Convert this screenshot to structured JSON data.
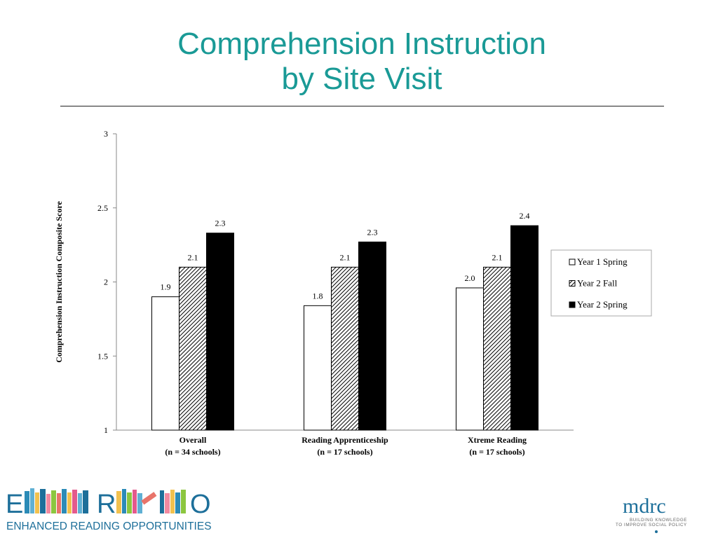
{
  "slide": {
    "title_line1": "Comprehension Instruction",
    "title_line2": "by Site Visit"
  },
  "colors": {
    "title": "#1a9a96",
    "logo_teal": "#1d6f9a"
  },
  "chart_data": {
    "type": "bar",
    "categories": [
      [
        "Overall",
        "(n = 34 schools)"
      ],
      [
        "Reading Apprenticeship",
        "(n = 17 schools)"
      ],
      [
        "Xtreme Reading",
        "(n = 17 schools)"
      ]
    ],
    "series": [
      {
        "name": "Year 1 Spring",
        "values": [
          1.9,
          1.84,
          1.96
        ],
        "labels": [
          "1.9",
          "1.8",
          "2.0"
        ],
        "fill": "white"
      },
      {
        "name": "Year 2 Fall",
        "values": [
          2.1,
          2.1,
          2.1
        ],
        "labels": [
          "2.1",
          "2.1",
          "2.1"
        ],
        "fill": "hatch"
      },
      {
        "name": "Year 2 Spring",
        "values": [
          2.33,
          2.27,
          2.38
        ],
        "labels": [
          "2.3",
          "2.3",
          "2.4"
        ],
        "fill": "black"
      }
    ],
    "ylabel": "Comprehension Instruction Composite Score",
    "xlabel": "",
    "ylim": [
      1,
      3
    ],
    "yticks": [
      "1",
      "1.5",
      "2",
      "2.5",
      "3"
    ],
    "ytick_values": [
      1,
      1.5,
      2,
      2.5,
      3
    ],
    "grid": false,
    "legend_position": "right"
  },
  "logos": {
    "left_letter_e": "E",
    "left_letter_r": "R",
    "left_letter_o": "O",
    "left_tagline": "ENHANCED READING OPPORTUNITIES",
    "right_name": "mdrc",
    "right_tagline_1": "BUILDING KNOWLEDGE",
    "right_tagline_2": "TO IMPROVE SOCIAL POLICY"
  }
}
